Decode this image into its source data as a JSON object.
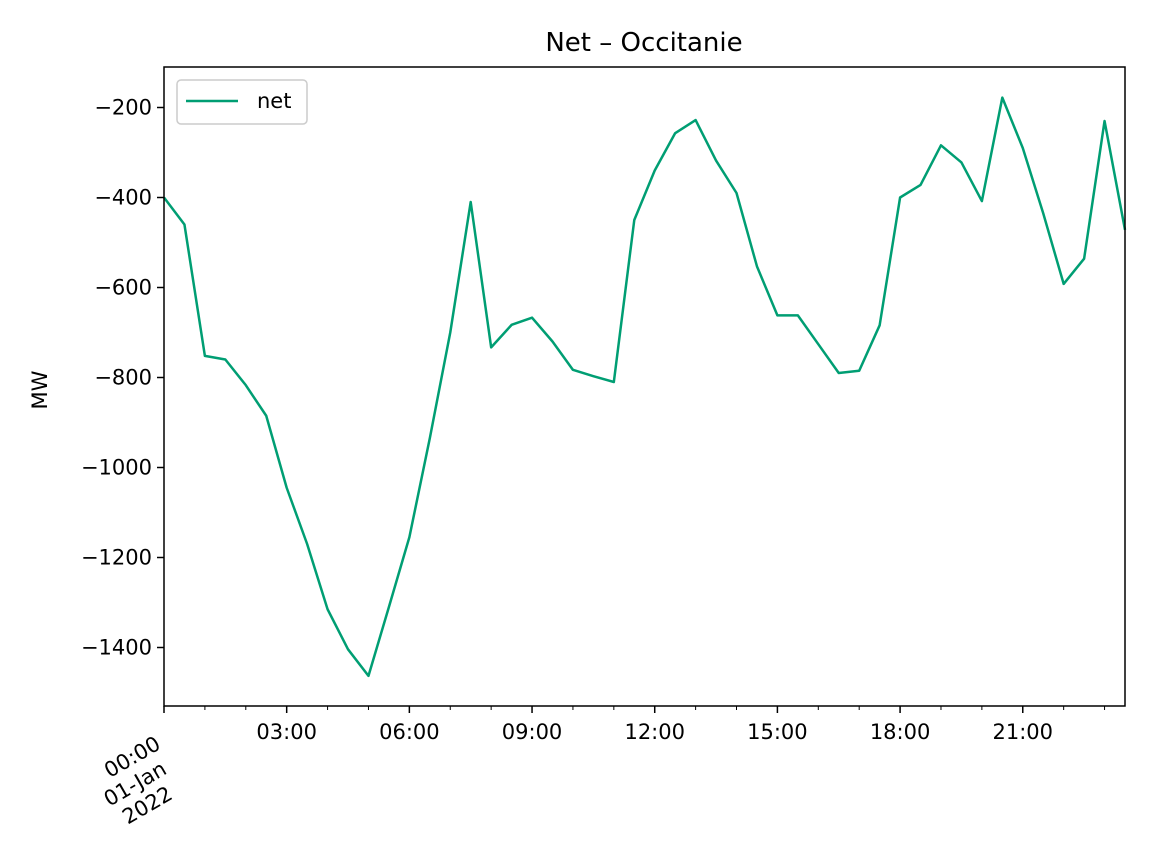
{
  "chart_data": {
    "type": "line",
    "title": "Net – Occitanie",
    "xlabel": "",
    "ylabel": "MW",
    "x_ticks": [
      "00:00",
      "03:00",
      "06:00",
      "09:00",
      "12:00",
      "15:00",
      "18:00",
      "21:00"
    ],
    "x_first_tick_extra": [
      "01-Jan",
      "2022"
    ],
    "y_ticks": [
      "−200",
      "−400",
      "−600",
      "−800",
      "−1000",
      "−1200",
      "−1400"
    ],
    "y_tick_values": [
      -200,
      -400,
      -600,
      -800,
      -1000,
      -1200,
      -1400
    ],
    "xlim": [
      "2022-01-01 00:00",
      "2022-01-01 23:30"
    ],
    "ylim": [
      -1530,
      -110
    ],
    "grid": false,
    "legend_position": "upper left",
    "series": [
      {
        "name": "net",
        "color": "#009e73",
        "x": [
          "00:00",
          "00:30",
          "01:00",
          "01:30",
          "02:00",
          "02:30",
          "03:00",
          "03:30",
          "04:00",
          "04:30",
          "05:00",
          "05:30",
          "06:00",
          "06:30",
          "07:00",
          "07:30",
          "08:00",
          "08:30",
          "09:00",
          "09:30",
          "10:00",
          "10:30",
          "11:00",
          "11:30",
          "12:00",
          "12:30",
          "13:00",
          "13:30",
          "14:00",
          "14:30",
          "15:00",
          "15:30",
          "16:00",
          "16:30",
          "17:00",
          "17:30",
          "18:00",
          "18:30",
          "19:00",
          "19:30",
          "20:00",
          "20:30",
          "21:00",
          "21:30",
          "22:00",
          "22:30",
          "23:00",
          "23:30"
        ],
        "values": [
          -400,
          -460,
          -752,
          -760,
          -817,
          -885,
          -1045,
          -1170,
          -1315,
          -1404,
          -1463,
          -1310,
          -1155,
          -935,
          -700,
          -410,
          -733,
          -683,
          -667,
          -720,
          -783,
          -797,
          -810,
          -450,
          -340,
          -257,
          -228,
          -318,
          -390,
          -553,
          -662,
          -662,
          -726,
          -790,
          -785,
          -684,
          -400,
          -372,
          -284,
          -322,
          -408,
          -178,
          -290,
          -435,
          -592,
          -536,
          -230,
          -472
        ]
      }
    ]
  }
}
